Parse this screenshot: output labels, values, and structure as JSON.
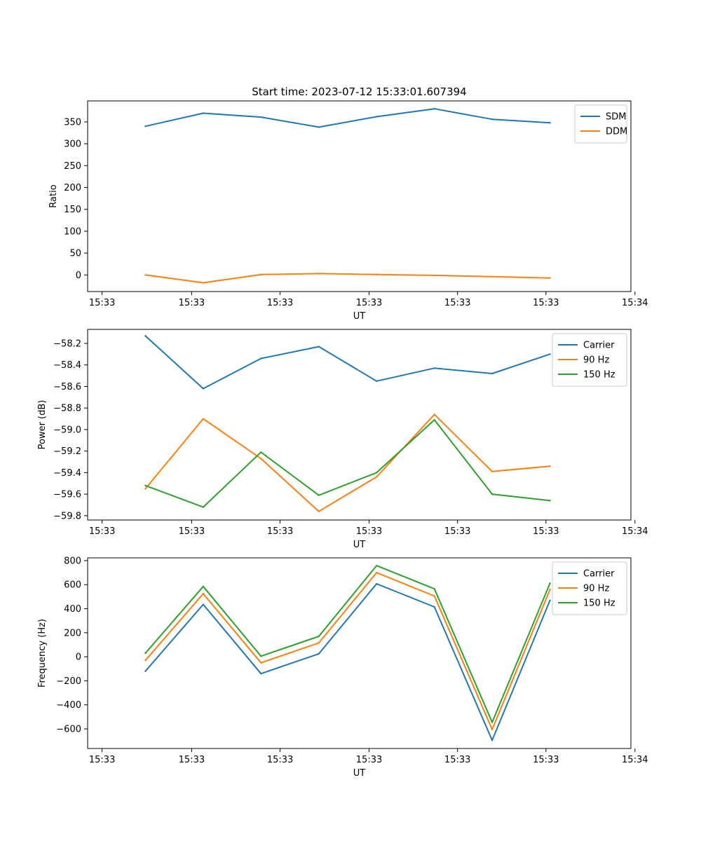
{
  "figure": {
    "title": "Start time: 2023-07-12 15:33:01.607394"
  },
  "colors": {
    "blue": "#1f77b4",
    "orange": "#ff7f0e",
    "green": "#2ca02c"
  },
  "chart_data": [
    {
      "type": "line",
      "title": "Start time: 2023-07-12 15:33:01.607394",
      "xlabel": "UT",
      "ylabel": "Ratio",
      "xlim": [
        0,
        9.4
      ],
      "ylim": [
        -38,
        398
      ],
      "x": [
        1,
        2,
        3,
        4,
        5,
        6,
        7,
        8
      ],
      "xticks": [
        0.25,
        1.8,
        3.33,
        4.87,
        6.4,
        7.93,
        9.47
      ],
      "xtick_labels": [
        "15:33",
        "15:33",
        "15:33",
        "15:33",
        "15:33",
        "15:33",
        "15:34"
      ],
      "yticks": [
        0,
        50,
        100,
        150,
        200,
        250,
        300,
        350
      ],
      "ytick_labels": [
        "0",
        "50",
        "100",
        "150",
        "200",
        "250",
        "300",
        "350"
      ],
      "legend": "top-right",
      "series": [
        {
          "name": "SDM",
          "color": "#1f77b4",
          "values": [
            340,
            370,
            361,
            338,
            362,
            380,
            356,
            348
          ]
        },
        {
          "name": "DDM",
          "color": "#ff7f0e",
          "values": [
            0,
            -18,
            1,
            3,
            1,
            -1,
            -4,
            -7
          ]
        }
      ]
    },
    {
      "type": "line",
      "title": "",
      "xlabel": "UT",
      "ylabel": "Power (dB)",
      "xlim": [
        0,
        9.4
      ],
      "ylim": [
        -59.84,
        -58.07
      ],
      "x": [
        1,
        2,
        3,
        4,
        5,
        6,
        7,
        8
      ],
      "xticks": [
        0.25,
        1.8,
        3.33,
        4.87,
        6.4,
        7.93,
        9.47
      ],
      "xtick_labels": [
        "15:33",
        "15:33",
        "15:33",
        "15:33",
        "15:33",
        "15:33",
        "15:34"
      ],
      "yticks": [
        -58.2,
        -58.4,
        -58.6,
        -58.8,
        -59.0,
        -59.2,
        -59.4,
        -59.6,
        -59.8
      ],
      "ytick_labels": [
        "−58.2",
        "−58.4",
        "−58.6",
        "−58.8",
        "−59.0",
        "−59.2",
        "−59.4",
        "−59.6",
        "−59.8"
      ],
      "legend": "top-right",
      "series": [
        {
          "name": "Carrier",
          "color": "#1f77b4",
          "values": [
            -58.13,
            -58.62,
            -58.34,
            -58.23,
            -58.55,
            -58.43,
            -58.48,
            -58.3
          ]
        },
        {
          "name": "90 Hz",
          "color": "#ff7f0e",
          "values": [
            -59.55,
            -58.9,
            -59.27,
            -59.76,
            -59.44,
            -58.86,
            -59.39,
            -59.34
          ]
        },
        {
          "name": "150 Hz",
          "color": "#2ca02c",
          "values": [
            -59.52,
            -59.72,
            -59.21,
            -59.61,
            -59.4,
            -58.91,
            -59.6,
            -59.66
          ]
        }
      ]
    },
    {
      "type": "line",
      "title": "",
      "xlabel": "UT",
      "ylabel": "Frequency (Hz)",
      "xlim": [
        0,
        9.4
      ],
      "ylim": [
        -763,
        823
      ],
      "x": [
        1,
        2,
        3,
        4,
        5,
        6,
        7,
        8
      ],
      "xticks": [
        0.25,
        1.8,
        3.33,
        4.87,
        6.4,
        7.93,
        9.47
      ],
      "xtick_labels": [
        "15:33",
        "15:33",
        "15:33",
        "15:33",
        "15:33",
        "15:33",
        "15:34"
      ],
      "yticks": [
        800,
        600,
        400,
        200,
        0,
        -200,
        -400,
        -600
      ],
      "ytick_labels": [
        "800",
        "600",
        "400",
        "200",
        "0",
        "−200",
        "−400",
        "−600"
      ],
      "legend": "top-right",
      "series": [
        {
          "name": "Carrier",
          "color": "#1f77b4",
          "values": [
            -120,
            435,
            -140,
            25,
            607,
            415,
            -695,
            470
          ]
        },
        {
          "name": "90 Hz",
          "color": "#ff7f0e",
          "values": [
            -30,
            525,
            -50,
            115,
            700,
            505,
            -605,
            560
          ]
        },
        {
          "name": "150 Hz",
          "color": "#2ca02c",
          "values": [
            30,
            585,
            5,
            170,
            758,
            565,
            -545,
            612
          ]
        }
      ]
    }
  ]
}
